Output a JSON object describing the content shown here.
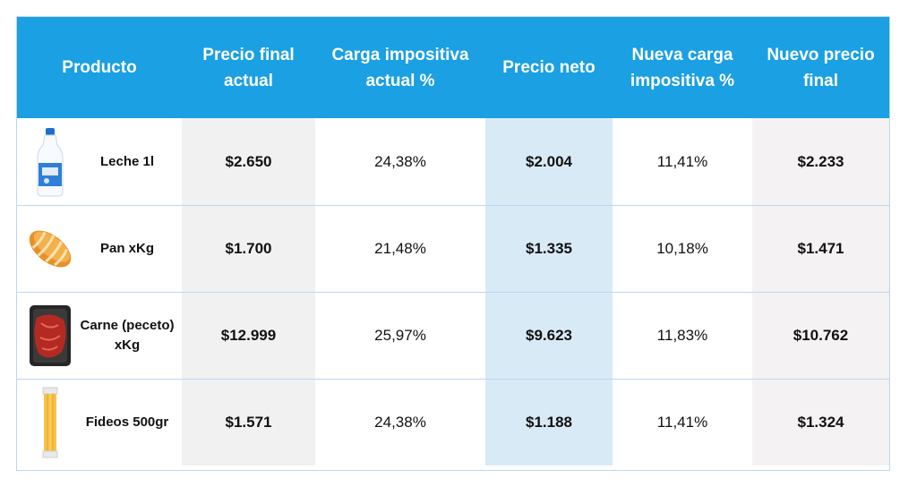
{
  "headers": [
    "Producto",
    "Precio final actual",
    "Carga impositiva actual %",
    "Precio neto",
    "Nueva carga impositiva %",
    "Nuevo precio final"
  ],
  "rows": [
    {
      "producto": "Leche 1l",
      "icon": "milk-bottle-icon",
      "precio_final_actual": "$2.650",
      "carga_actual": "24,38%",
      "precio_neto": "$2.004",
      "nueva_carga": "11,41%",
      "nuevo_precio_final": "$2.233"
    },
    {
      "producto": "Pan xKg",
      "icon": "bread-icon",
      "precio_final_actual": "$1.700",
      "carga_actual": "21,48%",
      "precio_neto": "$1.335",
      "nueva_carga": "10,18%",
      "nuevo_precio_final": "$1.471"
    },
    {
      "producto": "Carne (peceto) xKg",
      "icon": "meat-tray-icon",
      "precio_final_actual": "$12.999",
      "carga_actual": "25,97%",
      "precio_neto": "$9.623",
      "nueva_carga": "11,83%",
      "nuevo_precio_final": "$10.762"
    },
    {
      "producto": "Fideos 500gr",
      "icon": "pasta-package-icon",
      "precio_final_actual": "$1.571",
      "carga_actual": "24,38%",
      "precio_neto": "$1.188",
      "nueva_carga": "11,41%",
      "nuevo_precio_final": "$1.324"
    }
  ],
  "colors": {
    "header": "#1aa0e3",
    "column_gray": "#f1f1f1",
    "column_blue": "#d9eaf7",
    "border": "#bcd7ee"
  }
}
